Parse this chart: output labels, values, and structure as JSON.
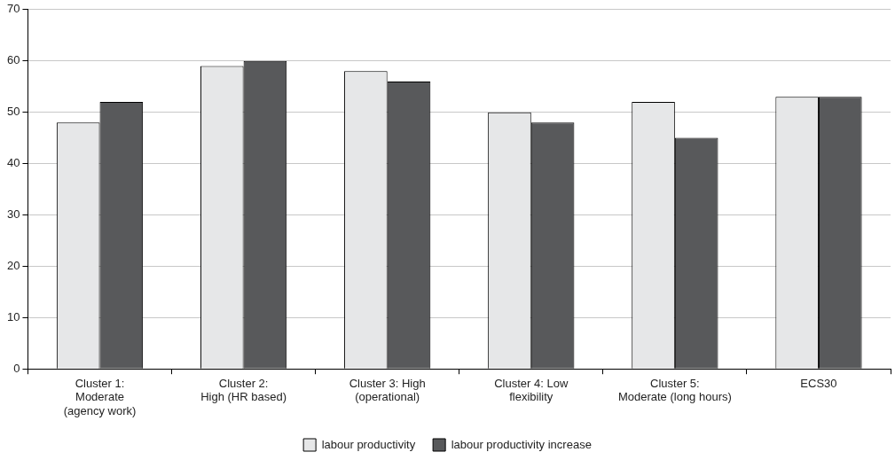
{
  "chart_data": {
    "type": "bar",
    "categories": [
      "Cluster 1:\nModerate\n(agency work)",
      "Cluster 2:\nHigh (HR based)",
      "Cluster 3: High\n(operational)",
      "Cluster 4: Low\nflexibility",
      "Cluster 5:\nModerate (long hours)",
      "ECS30"
    ],
    "series": [
      {
        "name": "labour productivity",
        "color": "#e6e7e8",
        "values": [
          48,
          59,
          58,
          50,
          52,
          53
        ]
      },
      {
        "name": "labour productivity increase",
        "color": "#58595b",
        "values": [
          52,
          60,
          56,
          48,
          45,
          53
        ]
      }
    ],
    "ylim": [
      0,
      70
    ],
    "yticks": [
      0,
      10,
      20,
      30,
      40,
      50,
      60,
      70
    ],
    "grid": "y",
    "legend": "bottom"
  }
}
